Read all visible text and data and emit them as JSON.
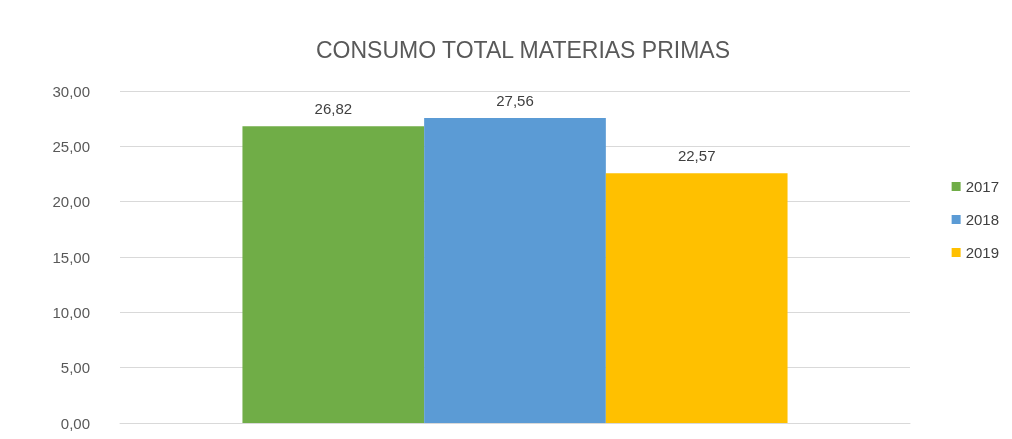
{
  "chart_data": {
    "type": "bar",
    "title": "CONSUMO TOTAL MATERIAS PRIMAS",
    "categories": [
      null
    ],
    "series": [
      {
        "name": "2017",
        "color": "#70ad47",
        "values": [
          26.82
        ],
        "value_labels": [
          "26,82"
        ]
      },
      {
        "name": "2018",
        "color": "#5b9bd5",
        "values": [
          27.56
        ],
        "value_labels": [
          "27,56"
        ]
      },
      {
        "name": "2019",
        "color": "#ffc000",
        "values": [
          22.57
        ],
        "value_labels": [
          "22,57"
        ]
      }
    ],
    "ylim": [
      0,
      30
    ],
    "yticks": [
      {
        "value": 0,
        "label": "0,00"
      },
      {
        "value": 5,
        "label": "5,00"
      },
      {
        "value": 10,
        "label": "10,00"
      },
      {
        "value": 15,
        "label": "15,00"
      },
      {
        "value": 20,
        "label": "20,00"
      },
      {
        "value": 25,
        "label": "25,00"
      },
      {
        "value": 30,
        "label": "30,00"
      }
    ],
    "grid": "y",
    "legend": "right"
  }
}
